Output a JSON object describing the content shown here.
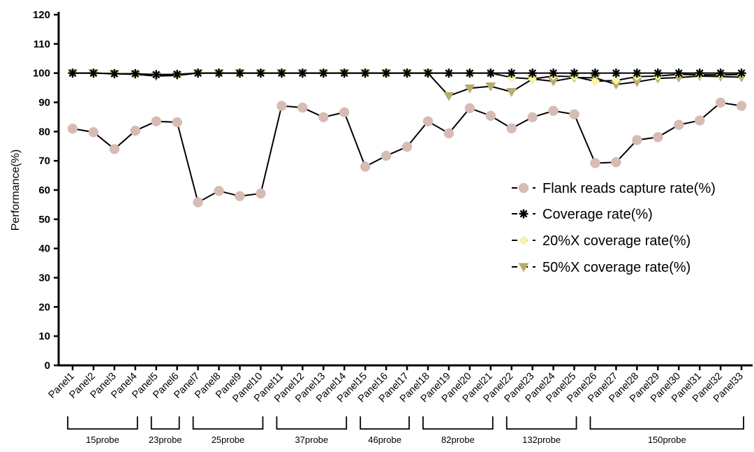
{
  "chart_data": {
    "type": "line",
    "title": "",
    "xlabel": "",
    "ylabel": "Performance(%)",
    "ylim": [
      0,
      120
    ],
    "yticks": [
      0,
      10,
      20,
      30,
      40,
      50,
      60,
      70,
      80,
      90,
      100,
      110,
      120
    ],
    "grid": false,
    "legend_position": "right",
    "categories": [
      "Panel1",
      "Panel2",
      "Panel3",
      "Panel4",
      "Panel5",
      "Panel6",
      "Panel7",
      "Panel8",
      "Panel9",
      "Panel10",
      "Panel11",
      "Panel12",
      "Panel13",
      "Panel14",
      "Panel15",
      "Panel16",
      "Panel17",
      "Panel18",
      "Panel19",
      "Panel20",
      "Panel21",
      "Panel22",
      "Panel23",
      "Panel24",
      "Panel25",
      "Panel26",
      "Panel27",
      "Panel28",
      "Panel29",
      "Panel30",
      "Panel31",
      "Panel32",
      "Panel33"
    ],
    "groups": [
      {
        "label": "15probe",
        "start": 0,
        "end": 3
      },
      {
        "label": "23probe",
        "start": 4,
        "end": 5
      },
      {
        "label": "25probe",
        "start": 6,
        "end": 9
      },
      {
        "label": "37probe",
        "start": 10,
        "end": 13
      },
      {
        "label": "46probe",
        "start": 14,
        "end": 16
      },
      {
        "label": "82probe",
        "start": 17,
        "end": 20
      },
      {
        "label": "132probe",
        "start": 21,
        "end": 24
      },
      {
        "label": "150probe",
        "start": 25,
        "end": 32
      }
    ],
    "series": [
      {
        "name": "Flank reads capture rate(%)",
        "marker": "circle",
        "color": "#d6bcb3",
        "values": [
          81,
          79.8,
          74,
          80.3,
          83.5,
          83.2,
          55.8,
          59.7,
          57.9,
          58.8,
          88.8,
          88.2,
          84.9,
          86.6,
          68,
          71.7,
          74.8,
          83.5,
          79.4,
          88,
          85.4,
          81.1,
          84.9,
          87.1,
          85.9,
          69.2,
          69.5,
          77.1,
          78.1,
          82.3,
          83.8,
          89.9,
          88.8
        ]
      },
      {
        "name": "Coverage rate(%)",
        "marker": "star",
        "color": "#000000",
        "values": [
          100,
          100,
          99.8,
          99.8,
          99.5,
          99.6,
          100,
          100,
          100,
          100,
          100,
          100,
          100,
          100,
          100,
          100,
          100,
          100,
          100,
          100,
          100,
          100,
          100,
          100,
          100,
          100,
          100,
          100,
          100,
          100,
          100,
          100,
          100
        ]
      },
      {
        "name": "20%X coverage rate(%)",
        "marker": "diamond",
        "color": "#fbf7a2",
        "values": [
          100,
          100,
          99.8,
          99.6,
          99.4,
          99.5,
          100,
          100,
          100,
          100,
          100,
          100,
          100,
          100,
          100,
          100,
          100,
          100,
          100,
          100,
          100,
          98.5,
          98,
          99,
          98.8,
          97.2,
          97.5,
          98.8,
          99,
          99.6,
          99.4,
          99.4,
          99.5
        ]
      },
      {
        "name": "50%X coverage rate(%)",
        "marker": "triangle-down",
        "color": "#b8ac6e",
        "values": [
          100,
          100,
          99.8,
          99.6,
          99,
          99.2,
          100,
          100,
          100,
          100,
          100,
          100,
          100,
          100,
          100,
          100,
          100,
          100,
          92.2,
          94.8,
          95.5,
          93.6,
          98,
          97.2,
          98.5,
          98.4,
          96.1,
          97,
          98.2,
          98.5,
          99,
          98.8,
          98.6
        ]
      }
    ]
  }
}
